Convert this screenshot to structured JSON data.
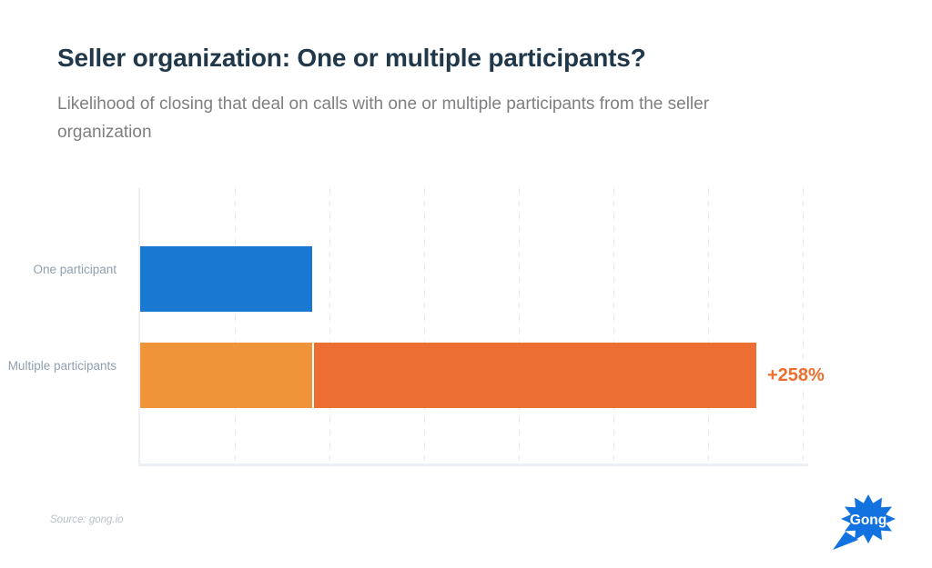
{
  "header": {
    "title": "Seller organization: One or multiple participants?",
    "subtitle": "Likelihood of closing that deal on calls with one or multiple participants from the seller organization"
  },
  "chart_data": {
    "type": "bar",
    "orientation": "horizontal",
    "title": "Seller organization: One or multiple participants?",
    "subtitle": "Likelihood of closing that deal on calls with one or multiple participants from the seller organization",
    "categories": [
      "One participant",
      "Multiple participants"
    ],
    "unit": "relative likelihood of closing the deal (one participant = 1.0)",
    "axis_max": 3.85,
    "axis_tick_labels": "none",
    "legend": "none",
    "grid": {
      "vertical_dashed_lines": 7,
      "color": "#E3E9EE"
    },
    "bars": [
      {
        "category": "One participant",
        "value": 1.0,
        "segments": [
          {
            "value": 1.0,
            "color": "#1878D2"
          }
        ],
        "annotation": ""
      },
      {
        "category": "Multiple participants",
        "value": 3.58,
        "segments": [
          {
            "value": 1.0,
            "color": "#F09439"
          },
          {
            "value": 2.58,
            "color": "#EC6E32"
          }
        ],
        "annotation": "+258%",
        "annotation_color": "#ED6F2E"
      }
    ]
  },
  "footer": {
    "source": "Source: gong.io",
    "logo_text": "Gong",
    "logo_color": "#1272E0"
  }
}
